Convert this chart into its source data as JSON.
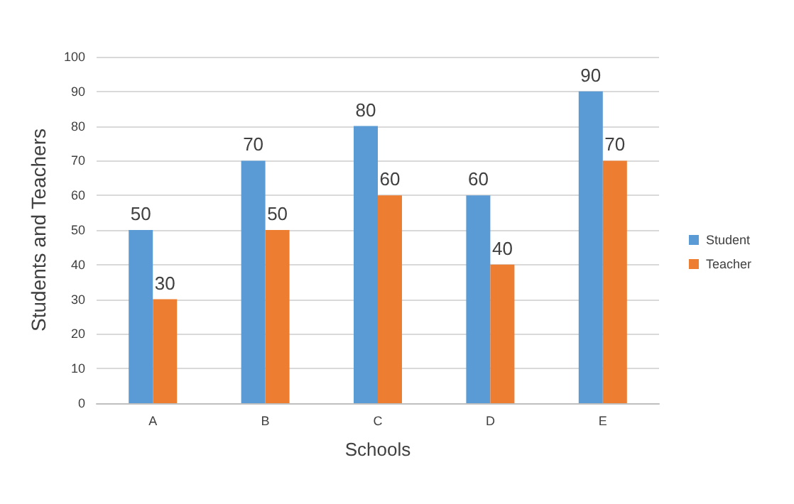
{
  "chart_data": {
    "type": "bar",
    "xlabel": "Schools",
    "ylabel": "Students and Teachers",
    "categories": [
      "A",
      "B",
      "C",
      "D",
      "E"
    ],
    "series": [
      {
        "name": "Student",
        "color": "#5b9bd5",
        "values": [
          50,
          70,
          80,
          60,
          90
        ]
      },
      {
        "name": "Teacher",
        "color": "#ed7d31",
        "values": [
          30,
          50,
          60,
          40,
          70
        ]
      }
    ],
    "ylim": [
      0,
      100
    ],
    "yticks": [
      0,
      10,
      20,
      30,
      40,
      50,
      60,
      70,
      80,
      90,
      100
    ],
    "grid": "y",
    "legend": "right",
    "data_labels": true
  }
}
